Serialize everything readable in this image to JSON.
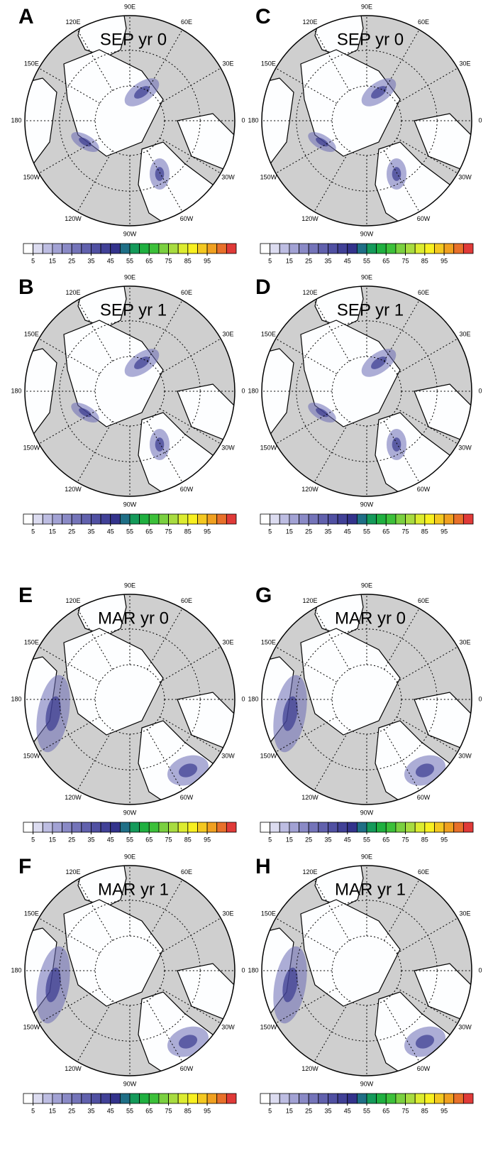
{
  "panels": [
    {
      "letter": "A",
      "title": "SEP yr 0"
    },
    {
      "letter": "C",
      "title": "SEP yr 0"
    },
    {
      "letter": "B",
      "title": "SEP yr 1"
    },
    {
      "letter": "D",
      "title": "SEP yr 1"
    },
    {
      "letter": "E",
      "title": "MAR yr 0"
    },
    {
      "letter": "G",
      "title": "MAR yr 0"
    },
    {
      "letter": "F",
      "title": "MAR yr 1"
    },
    {
      "letter": "H",
      "title": "MAR yr 1"
    }
  ],
  "longitude_labels": [
    "90E",
    "60E",
    "30E",
    "0",
    "30W",
    "60W",
    "90W",
    "120W",
    "150W",
    "180",
    "150E",
    "120E"
  ],
  "colorbar": {
    "colors": [
      "#ffffff",
      "#dcdcf0",
      "#bdbde2",
      "#a2a2d4",
      "#8a8ac6",
      "#7474b9",
      "#6161ad",
      "#5050a2",
      "#414197",
      "#33338c",
      "#1f6f86",
      "#149a5a",
      "#1fb040",
      "#3cc03a",
      "#7ad040",
      "#a8dc40",
      "#dcec30",
      "#f8f020",
      "#f4c820",
      "#f0a020",
      "#e8702a",
      "#e03a38"
    ],
    "ticks": [
      5,
      15,
      25,
      35,
      45,
      55,
      65,
      75,
      85,
      95
    ]
  }
}
